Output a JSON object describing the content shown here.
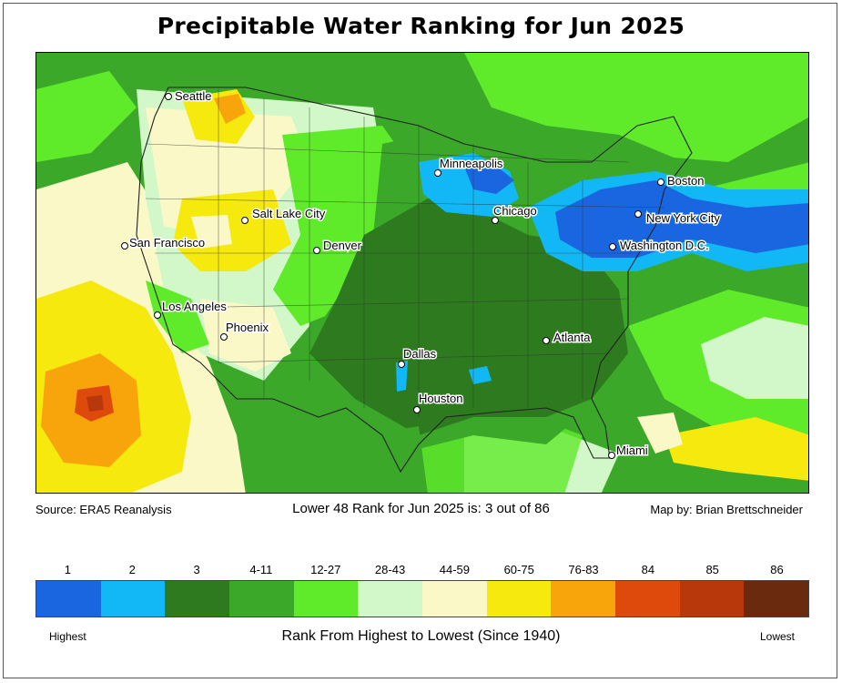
{
  "title": "Precipitable Water Ranking for Jun 2025",
  "source": "Source: ERA5 Reanalysis",
  "rank_text": "Lower 48 Rank for Jun 2025 is: 3 out of 86",
  "credit": "Map by: Brian Brettschneider",
  "legend": {
    "classes": [
      {
        "label": "1",
        "color": "#1a66e0"
      },
      {
        "label": "2",
        "color": "#12b8f5"
      },
      {
        "label": "3",
        "color": "#2d7a1f"
      },
      {
        "label": "4-11",
        "color": "#3ba82a"
      },
      {
        "label": "12-27",
        "color": "#5fea2a"
      },
      {
        "label": "28-43",
        "color": "#d2f7c8"
      },
      {
        "label": "44-59",
        "color": "#fbf8c8"
      },
      {
        "label": "60-75",
        "color": "#f5e90e"
      },
      {
        "label": "76-83",
        "color": "#f8a50c"
      },
      {
        "label": "84",
        "color": "#de4a0b"
      },
      {
        "label": "85",
        "color": "#b8380c"
      },
      {
        "label": "86",
        "color": "#6a2a0e"
      }
    ],
    "low_end": "Highest",
    "high_end": "Lowest",
    "axis_title": "Rank From Highest to Lowest (Since 1940)"
  },
  "cities": [
    {
      "name": "Seattle"
    },
    {
      "name": "Minneapolis"
    },
    {
      "name": "Boston"
    },
    {
      "name": "Salt Lake City"
    },
    {
      "name": "Chicago"
    },
    {
      "name": "New York City"
    },
    {
      "name": "San Francisco"
    },
    {
      "name": "Denver"
    },
    {
      "name": "Washington D.C."
    },
    {
      "name": "Los Angeles"
    },
    {
      "name": "Phoenix"
    },
    {
      "name": "Atlanta"
    },
    {
      "name": "Dallas"
    },
    {
      "name": "Houston"
    },
    {
      "name": "Miami"
    }
  ]
}
